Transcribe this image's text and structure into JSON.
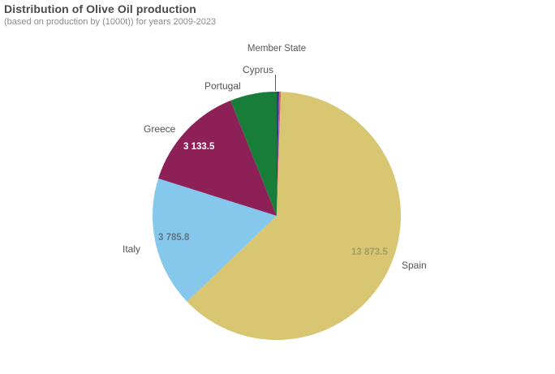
{
  "header": {
    "title": "Distribution of Olive Oil production",
    "subtitle": "(based on production by (1000t)) for years 2009-2023"
  },
  "chart_data": {
    "type": "pie",
    "title": "Distribution of Olive Oil production",
    "subtitle": "(based on production by (1000t)) for years 2009-2023",
    "dimension_title": "Member State",
    "unit": "1000t",
    "legend_position": "none",
    "label_style": "category names outside, values inside slices",
    "slices": [
      {
        "label": "Cyprus",
        "value": 70,
        "value_label": "",
        "value_estimated_from_angle": true,
        "color": "#3a32a0"
      },
      {
        "label": "",
        "value": 50,
        "value_label": "",
        "value_estimated_from_angle": true,
        "color": "#cc6677"
      },
      {
        "label": "Spain",
        "value": 13873.5,
        "value_label": "13 873.5",
        "value_estimated_from_angle": false,
        "color": "#d8c672"
      },
      {
        "label": "Italy",
        "value": 3785.8,
        "value_label": "3 785.8",
        "value_estimated_from_angle": false,
        "color": "#85c8eb"
      },
      {
        "label": "Greece",
        "value": 3133.5,
        "value_label": "3 133.5",
        "value_estimated_from_angle": false,
        "color": "#8e2058"
      },
      {
        "label": "Portugal",
        "value": 1350,
        "value_label": "",
        "value_estimated_from_angle": true,
        "color": "#187d38"
      }
    ],
    "draw_order": "clockwise from 12 o'clock",
    "colors": {
      "title_text": "#4a4a4a",
      "subtitle_text": "#8c8c8c",
      "label_text": "#545454",
      "background": "#ffffff"
    }
  }
}
